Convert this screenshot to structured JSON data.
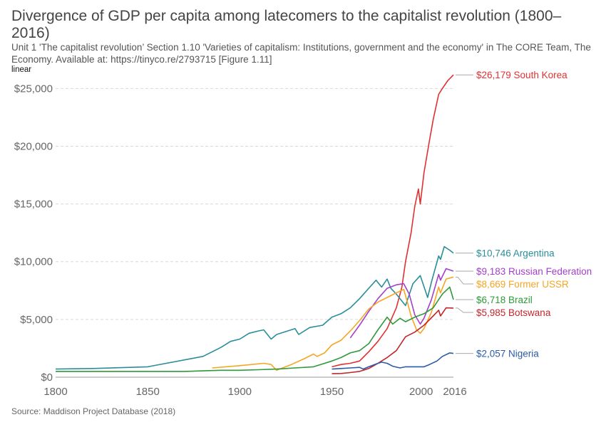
{
  "title": "Divergence of GDP per capita among latecomers to the capitalist revolution (1800–2016)",
  "subtitle": "Unit 1 'The capitalist revolution’ Section 1.10 'Varieties of capitalism: Institutions, government and the economy' in The CORE Team, The Economy. Available at: https://tinyco.re/2793715 [Figure 1.11]",
  "scale_toggle": "linear",
  "source": "Source: Maddison Project Database (2018)",
  "chart_data": {
    "type": "line",
    "title": "Divergence of GDP per capita among latecomers to the capitalist revolution (1800–2016)",
    "xlabel": "",
    "ylabel": "",
    "xlim": [
      1800,
      2016
    ],
    "ylim": [
      0,
      26500
    ],
    "grid": "horizontal dashed",
    "x_ticks": [
      {
        "value": 1800,
        "label": "1800"
      },
      {
        "value": 1850,
        "label": "1850"
      },
      {
        "value": 1900,
        "label": "1900"
      },
      {
        "value": 1950,
        "label": "1950"
      },
      {
        "value": 2000,
        "label": "2000"
      },
      {
        "value": 2016,
        "label": "2016"
      }
    ],
    "y_ticks": [
      {
        "value": 0,
        "label": "$0"
      },
      {
        "value": 5000,
        "label": "$5,000"
      },
      {
        "value": 10000,
        "label": "$10,000"
      },
      {
        "value": 15000,
        "label": "$15,000"
      },
      {
        "value": 20000,
        "label": "$20,000"
      },
      {
        "value": 25000,
        "label": "$25,000"
      }
    ],
    "series": [
      {
        "name": "South Korea",
        "end_label": "$26,179 South Korea",
        "color": "#e03131",
        "points": [
          [
            1950,
            900
          ],
          [
            1955,
            1100
          ],
          [
            1960,
            1200
          ],
          [
            1965,
            1400
          ],
          [
            1970,
            2200
          ],
          [
            1975,
            3100
          ],
          [
            1980,
            4200
          ],
          [
            1985,
            6000
          ],
          [
            1988,
            7800
          ],
          [
            1990,
            10000
          ],
          [
            1993,
            12500
          ],
          [
            1995,
            14800
          ],
          [
            1997,
            16300
          ],
          [
            1998,
            15000
          ],
          [
            2000,
            17700
          ],
          [
            2003,
            20500
          ],
          [
            2005,
            22300
          ],
          [
            2008,
            24500
          ],
          [
            2010,
            25000
          ],
          [
            2013,
            25700
          ],
          [
            2016,
            26179
          ]
        ]
      },
      {
        "name": "Argentina",
        "end_label": "$10,746 Argentina",
        "color": "#2a8e9a",
        "points": [
          [
            1800,
            700
          ],
          [
            1820,
            750
          ],
          [
            1850,
            900
          ],
          [
            1870,
            1500
          ],
          [
            1880,
            1800
          ],
          [
            1890,
            2600
          ],
          [
            1895,
            3100
          ],
          [
            1900,
            3300
          ],
          [
            1905,
            3800
          ],
          [
            1910,
            4000
          ],
          [
            1913,
            4100
          ],
          [
            1917,
            3300
          ],
          [
            1920,
            3700
          ],
          [
            1930,
            4200
          ],
          [
            1932,
            3700
          ],
          [
            1938,
            4300
          ],
          [
            1945,
            4500
          ],
          [
            1950,
            5200
          ],
          [
            1955,
            5500
          ],
          [
            1960,
            6000
          ],
          [
            1965,
            6800
          ],
          [
            1970,
            7700
          ],
          [
            1974,
            8400
          ],
          [
            1977,
            7800
          ],
          [
            1980,
            8500
          ],
          [
            1982,
            7700
          ],
          [
            1985,
            7200
          ],
          [
            1989,
            6400
          ],
          [
            1990,
            6200
          ],
          [
            1994,
            8100
          ],
          [
            1998,
            8800
          ],
          [
            2002,
            6900
          ],
          [
            2004,
            8200
          ],
          [
            2008,
            10500
          ],
          [
            2009,
            10200
          ],
          [
            2011,
            11300
          ],
          [
            2014,
            11000
          ],
          [
            2016,
            10746
          ]
        ]
      },
      {
        "name": "Russian Federation",
        "end_label": "$9,183 Russian Federation",
        "color": "#a43fc9",
        "points": [
          [
            1960,
            3400
          ],
          [
            1965,
            4500
          ],
          [
            1970,
            5700
          ],
          [
            1975,
            6800
          ],
          [
            1980,
            7700
          ],
          [
            1985,
            8000
          ],
          [
            1989,
            8100
          ],
          [
            1992,
            7200
          ],
          [
            1995,
            5400
          ],
          [
            1998,
            4600
          ],
          [
            2000,
            5100
          ],
          [
            2004,
            6700
          ],
          [
            2008,
            8900
          ],
          [
            2009,
            8400
          ],
          [
            2012,
            9400
          ],
          [
            2016,
            9183
          ]
        ]
      },
      {
        "name": "Former USSR",
        "end_label": "$8,669 Former USSR",
        "color": "#f5a623",
        "points": [
          [
            1885,
            800
          ],
          [
            1900,
            1000
          ],
          [
            1913,
            1200
          ],
          [
            1917,
            1100
          ],
          [
            1920,
            600
          ],
          [
            1928,
            1100
          ],
          [
            1935,
            1600
          ],
          [
            1940,
            2000
          ],
          [
            1942,
            1800
          ],
          [
            1946,
            2100
          ],
          [
            1950,
            2800
          ],
          [
            1955,
            3200
          ],
          [
            1960,
            4000
          ],
          [
            1965,
            4900
          ],
          [
            1970,
            5900
          ],
          [
            1975,
            6500
          ],
          [
            1980,
            6900
          ],
          [
            1985,
            7300
          ],
          [
            1989,
            7600
          ],
          [
            1991,
            6500
          ],
          [
            1993,
            5300
          ],
          [
            1996,
            4100
          ],
          [
            1998,
            3800
          ],
          [
            2000,
            4200
          ],
          [
            2004,
            5600
          ],
          [
            2008,
            7800
          ],
          [
            2009,
            7300
          ],
          [
            2012,
            8500
          ],
          [
            2016,
            8669
          ]
        ]
      },
      {
        "name": "Brazil",
        "end_label": "$6,718 Brazil",
        "color": "#2e9a3a",
        "points": [
          [
            1800,
            500
          ],
          [
            1850,
            500
          ],
          [
            1870,
            500
          ],
          [
            1880,
            550
          ],
          [
            1890,
            600
          ],
          [
            1900,
            600
          ],
          [
            1910,
            650
          ],
          [
            1920,
            700
          ],
          [
            1930,
            800
          ],
          [
            1940,
            900
          ],
          [
            1950,
            1400
          ],
          [
            1955,
            1700
          ],
          [
            1960,
            2100
          ],
          [
            1965,
            2300
          ],
          [
            1970,
            2900
          ],
          [
            1975,
            4100
          ],
          [
            1980,
            5200
          ],
          [
            1983,
            4600
          ],
          [
            1987,
            5100
          ],
          [
            1990,
            4800
          ],
          [
            1995,
            5200
          ],
          [
            2000,
            5500
          ],
          [
            2005,
            6000
          ],
          [
            2010,
            7200
          ],
          [
            2014,
            7800
          ],
          [
            2016,
            6718
          ]
        ]
      },
      {
        "name": "Botswana",
        "end_label": "$5,985 Botswana",
        "color": "#c0262d",
        "points": [
          [
            1950,
            300
          ],
          [
            1955,
            320
          ],
          [
            1960,
            400
          ],
          [
            1965,
            500
          ],
          [
            1970,
            750
          ],
          [
            1975,
            1200
          ],
          [
            1980,
            1700
          ],
          [
            1985,
            2300
          ],
          [
            1990,
            3500
          ],
          [
            1995,
            3900
          ],
          [
            2000,
            4500
          ],
          [
            2005,
            5300
          ],
          [
            2008,
            5800
          ],
          [
            2009,
            5300
          ],
          [
            2012,
            6000
          ],
          [
            2016,
            5985
          ]
        ]
      },
      {
        "name": "Nigeria",
        "end_label": "$2,057 Nigeria",
        "color": "#2a5aa7",
        "points": [
          [
            1950,
            700
          ],
          [
            1955,
            750
          ],
          [
            1960,
            800
          ],
          [
            1965,
            850
          ],
          [
            1967,
            700
          ],
          [
            1970,
            900
          ],
          [
            1975,
            1200
          ],
          [
            1977,
            1300
          ],
          [
            1980,
            1200
          ],
          [
            1983,
            950
          ],
          [
            1987,
            800
          ],
          [
            1990,
            900
          ],
          [
            1995,
            900
          ],
          [
            2000,
            900
          ],
          [
            2003,
            1100
          ],
          [
            2007,
            1400
          ],
          [
            2010,
            1800
          ],
          [
            2014,
            2100
          ],
          [
            2016,
            2057
          ]
        ]
      }
    ]
  }
}
